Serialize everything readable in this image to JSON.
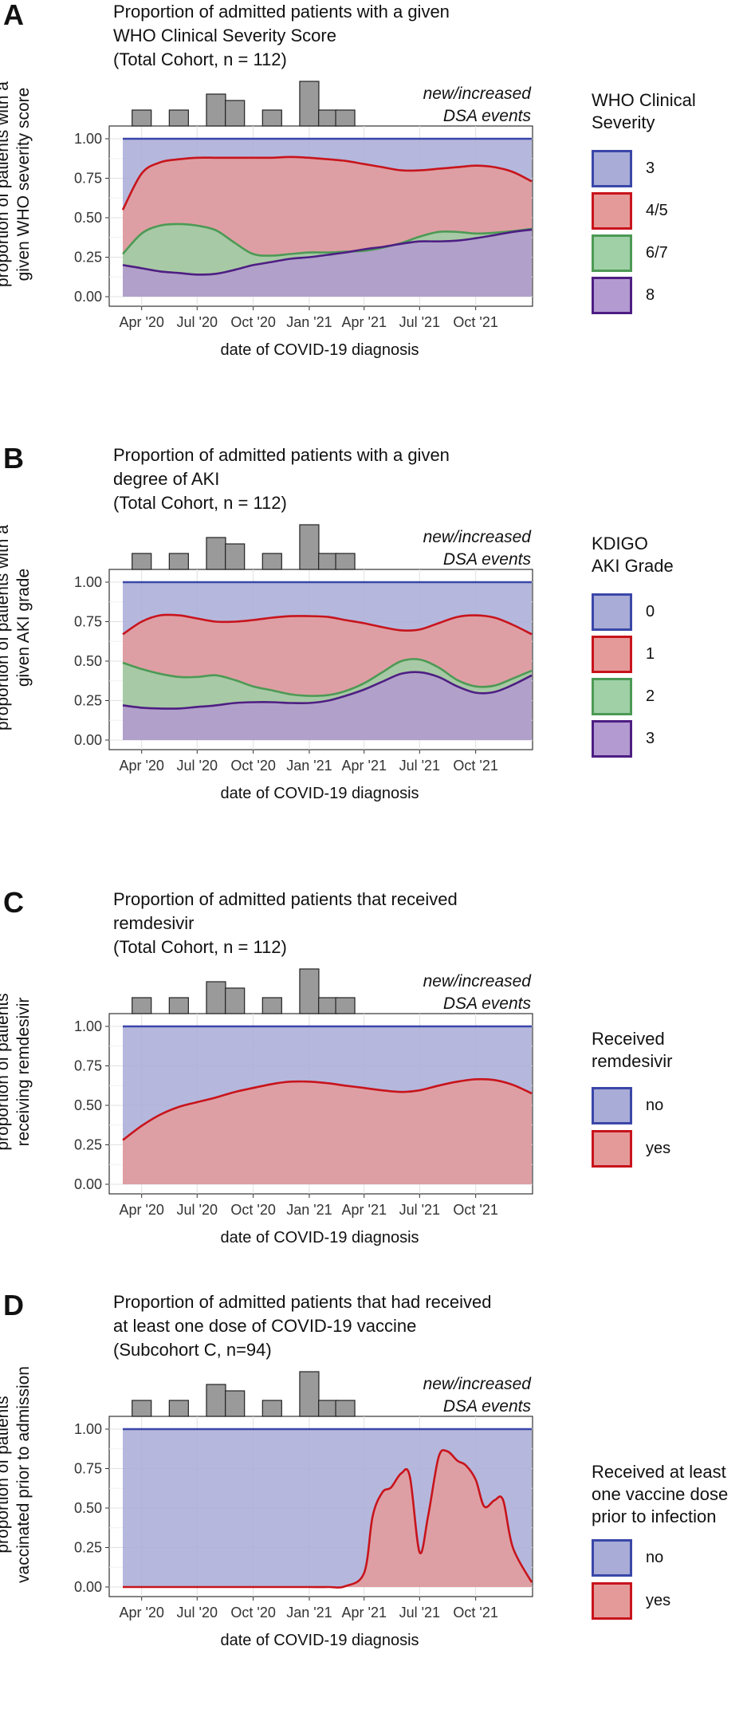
{
  "colors": {
    "blue_fill": "#a8acd6",
    "blue_line": "#3a47a8",
    "red_fill": "#e59a9a",
    "red_line": "#c8141c",
    "green_fill": "#9fd0a6",
    "green_line": "#4c9a55",
    "purple_fill": "#b39ad0",
    "purple_line": "#4e1e83",
    "hist_fill": "#9a9a9a"
  },
  "common": {
    "x_tick_labels": [
      "Apr '20",
      "Jul '20",
      "Oct '20",
      "Jan '21",
      "Apr '21",
      "Jul '21",
      "Oct '21"
    ],
    "y_tick_labels": [
      "1.00",
      "0.75",
      "0.50",
      "0.25",
      "0.00"
    ],
    "xlabel": "date of COVID-19 diagnosis",
    "events_label": "new/increased\nDSA events"
  },
  "panels": [
    {
      "letter": "A",
      "title": "Proportion of admitted patients with a given\nWHO Clinical Severity Score\n(Total Cohort, n = 112)",
      "ylabel": "proportion of patients with a\ngiven WHO severity score",
      "legend_title": "WHO Clinical\nSeverity",
      "legend": [
        {
          "label": "3",
          "fill": "#a8acd6",
          "line": "#3a47a8"
        },
        {
          "label": "4/5",
          "fill": "#e59a9a",
          "line": "#c8141c"
        },
        {
          "label": "6/7",
          "fill": "#9fd0a6",
          "line": "#4c9a55"
        },
        {
          "label": "8",
          "fill": "#b39ad0",
          "line": "#4e1e83"
        }
      ]
    },
    {
      "letter": "B",
      "title": "Proportion of admitted patients with a given\ndegree of AKI\n(Total Cohort, n = 112)",
      "ylabel": "proportion of patients with a\ngiven AKI grade",
      "legend_title": "KDIGO\nAKI Grade",
      "legend": [
        {
          "label": "0",
          "fill": "#a8acd6",
          "line": "#3a47a8"
        },
        {
          "label": "1",
          "fill": "#e59a9a",
          "line": "#c8141c"
        },
        {
          "label": "2",
          "fill": "#9fd0a6",
          "line": "#4c9a55"
        },
        {
          "label": "3",
          "fill": "#b39ad0",
          "line": "#4e1e83"
        }
      ]
    },
    {
      "letter": "C",
      "title": "Proportion of admitted patients that received\nremdesivir\n(Total Cohort, n = 112)",
      "ylabel": "proportion of patients\nreceiving remdesivir",
      "legend_title": "Received\nremdesivir",
      "legend": [
        {
          "label": "no",
          "fill": "#a8acd6",
          "line": "#3a47a8"
        },
        {
          "label": "yes",
          "fill": "#e59a9a",
          "line": "#c8141c"
        }
      ]
    },
    {
      "letter": "D",
      "title": "Proportion of admitted patients that had received\nat least one dose of COVID-19 vaccine\n(Subcohort C, n=94)",
      "ylabel": "proportion of patients\nvaccinated prior to admission",
      "legend_title": "Received at least\none vaccine dose\nprior to infection",
      "legend": [
        {
          "label": "no",
          "fill": "#a8acd6",
          "line": "#3a47a8"
        },
        {
          "label": "yes",
          "fill": "#e59a9a",
          "line": "#c8141c"
        }
      ]
    }
  ],
  "chart_data": [
    {
      "type": "area",
      "title": "Proportion of admitted patients with a given WHO Clinical Severity Score (Total Cohort, n = 112)",
      "xlabel": "date of COVID-19 diagnosis",
      "ylabel": "proportion of patients with a given WHO severity score",
      "ylim": [
        0,
        1
      ],
      "x": [
        "2020-03-01",
        "2020-04-01",
        "2020-05-01",
        "2020-06-01",
        "2020-07-01",
        "2020-08-01",
        "2020-09-01",
        "2020-10-01",
        "2020-11-01",
        "2020-12-01",
        "2021-01-01",
        "2021-02-01",
        "2021-03-01",
        "2021-04-01",
        "2021-05-01",
        "2021-06-01",
        "2021-07-01",
        "2021-08-01",
        "2021-09-01",
        "2021-10-01",
        "2021-11-01",
        "2021-12-01",
        "2022-01-01"
      ],
      "series": [
        {
          "name": "3",
          "values": [
            1,
            1,
            1,
            1,
            1,
            1,
            1,
            1,
            1,
            1,
            1,
            1,
            1,
            1,
            1,
            1,
            1,
            1,
            1,
            1,
            1,
            1,
            1
          ]
        },
        {
          "name": "4/5",
          "values": [
            0.55,
            0.78,
            0.85,
            0.87,
            0.88,
            0.88,
            0.88,
            0.88,
            0.88,
            0.885,
            0.88,
            0.87,
            0.86,
            0.84,
            0.82,
            0.8,
            0.8,
            0.81,
            0.82,
            0.83,
            0.82,
            0.79,
            0.73
          ]
        },
        {
          "name": "6/7",
          "values": [
            0.27,
            0.4,
            0.45,
            0.46,
            0.45,
            0.42,
            0.34,
            0.27,
            0.26,
            0.27,
            0.28,
            0.28,
            0.285,
            0.29,
            0.31,
            0.34,
            0.38,
            0.41,
            0.41,
            0.4,
            0.405,
            0.415,
            0.43
          ]
        },
        {
          "name": "8",
          "values": [
            0.2,
            0.18,
            0.16,
            0.15,
            0.14,
            0.145,
            0.17,
            0.2,
            0.22,
            0.24,
            0.25,
            0.265,
            0.28,
            0.3,
            0.315,
            0.335,
            0.35,
            0.35,
            0.355,
            0.37,
            0.39,
            0.41,
            0.425
          ]
        }
      ],
      "histogram": {
        "label": "new/increased DSA events",
        "bins": [
          "2020-04",
          "2020-06",
          "2020-08",
          "2020-09",
          "2020-11",
          "2021-01",
          "2021-02",
          "2021-03"
        ],
        "heights": [
          1,
          1,
          2,
          1.6,
          1,
          2.8,
          1,
          1
        ]
      }
    },
    {
      "type": "area",
      "title": "Proportion of admitted patients with a given degree of AKI (Total Cohort, n = 112)",
      "xlabel": "date of COVID-19 diagnosis",
      "ylabel": "proportion of patients with a given AKI grade",
      "ylim": [
        0,
        1
      ],
      "x": [
        "2020-03-01",
        "2020-04-01",
        "2020-05-01",
        "2020-06-01",
        "2020-07-01",
        "2020-08-01",
        "2020-09-01",
        "2020-10-01",
        "2020-11-01",
        "2020-12-01",
        "2021-01-01",
        "2021-02-01",
        "2021-03-01",
        "2021-04-01",
        "2021-05-01",
        "2021-06-01",
        "2021-07-01",
        "2021-08-01",
        "2021-09-01",
        "2021-10-01",
        "2021-11-01",
        "2021-12-01",
        "2022-01-01"
      ],
      "series": [
        {
          "name": "0",
          "values": [
            1,
            1,
            1,
            1,
            1,
            1,
            1,
            1,
            1,
            1,
            1,
            1,
            1,
            1,
            1,
            1,
            1,
            1,
            1,
            1,
            1,
            1,
            1
          ]
        },
        {
          "name": "1",
          "values": [
            0.67,
            0.75,
            0.79,
            0.79,
            0.77,
            0.75,
            0.75,
            0.76,
            0.775,
            0.785,
            0.785,
            0.78,
            0.76,
            0.74,
            0.715,
            0.695,
            0.7,
            0.74,
            0.78,
            0.79,
            0.775,
            0.73,
            0.67
          ]
        },
        {
          "name": "2",
          "values": [
            0.49,
            0.45,
            0.42,
            0.4,
            0.4,
            0.41,
            0.38,
            0.34,
            0.315,
            0.29,
            0.28,
            0.285,
            0.31,
            0.36,
            0.43,
            0.5,
            0.51,
            0.46,
            0.38,
            0.34,
            0.345,
            0.39,
            0.44
          ]
        },
        {
          "name": "3",
          "values": [
            0.22,
            0.205,
            0.2,
            0.2,
            0.21,
            0.22,
            0.235,
            0.24,
            0.24,
            0.235,
            0.235,
            0.25,
            0.28,
            0.32,
            0.37,
            0.42,
            0.43,
            0.4,
            0.34,
            0.3,
            0.305,
            0.35,
            0.41
          ]
        }
      ],
      "histogram": {
        "label": "new/increased DSA events",
        "bins": [
          "2020-04",
          "2020-06",
          "2020-08",
          "2020-09",
          "2020-11",
          "2021-01",
          "2021-02",
          "2021-03"
        ],
        "heights": [
          1,
          1,
          2,
          1.6,
          1,
          2.8,
          1,
          1
        ]
      }
    },
    {
      "type": "area",
      "title": "Proportion of admitted patients that received remdesivir (Total Cohort, n = 112)",
      "xlabel": "date of COVID-19 diagnosis",
      "ylabel": "proportion of patients receiving remdesivir",
      "ylim": [
        0,
        1
      ],
      "x": [
        "2020-03-01",
        "2020-04-01",
        "2020-05-01",
        "2020-06-01",
        "2020-07-01",
        "2020-08-01",
        "2020-09-01",
        "2020-10-01",
        "2020-11-01",
        "2020-12-01",
        "2021-01-01",
        "2021-02-01",
        "2021-03-01",
        "2021-04-01",
        "2021-05-01",
        "2021-06-01",
        "2021-07-01",
        "2021-08-01",
        "2021-09-01",
        "2021-10-01",
        "2021-11-01",
        "2021-12-01",
        "2022-01-01"
      ],
      "series": [
        {
          "name": "no",
          "values": [
            1,
            1,
            1,
            1,
            1,
            1,
            1,
            1,
            1,
            1,
            1,
            1,
            1,
            1,
            1,
            1,
            1,
            1,
            1,
            1,
            1,
            1,
            1
          ]
        },
        {
          "name": "yes",
          "values": [
            0.28,
            0.37,
            0.44,
            0.49,
            0.52,
            0.55,
            0.585,
            0.61,
            0.635,
            0.65,
            0.65,
            0.64,
            0.625,
            0.61,
            0.595,
            0.585,
            0.595,
            0.625,
            0.65,
            0.665,
            0.66,
            0.63,
            0.575
          ]
        }
      ],
      "histogram": {
        "label": "new/increased DSA events",
        "bins": [
          "2020-04",
          "2020-06",
          "2020-08",
          "2020-09",
          "2020-11",
          "2021-01",
          "2021-02",
          "2021-03"
        ],
        "heights": [
          1,
          1,
          2,
          1.6,
          1,
          2.8,
          1,
          1
        ]
      }
    },
    {
      "type": "area",
      "title": "Proportion of admitted patients that had received at least one dose of COVID-19 vaccine (Subcohort C, n=94)",
      "xlabel": "date of COVID-19 diagnosis",
      "ylabel": "proportion of patients vaccinated prior to admission",
      "ylim": [
        0,
        1
      ],
      "x": [
        "2020-03-01",
        "2020-04-01",
        "2020-05-01",
        "2020-06-01",
        "2020-07-01",
        "2020-08-01",
        "2020-09-01",
        "2020-10-01",
        "2020-11-01",
        "2020-12-01",
        "2021-01-01",
        "2021-02-01",
        "2021-03-01",
        "2021-04-01",
        "2021-04-15",
        "2021-05-01",
        "2021-05-15",
        "2021-06-01",
        "2021-06-15",
        "2021-07-01",
        "2021-07-15",
        "2021-08-01",
        "2021-08-15",
        "2021-09-01",
        "2021-09-15",
        "2021-10-01",
        "2021-10-15",
        "2021-11-01",
        "2021-11-15",
        "2021-12-01",
        "2022-01-01"
      ],
      "series": [
        {
          "name": "no",
          "values": [
            1,
            1,
            1,
            1,
            1,
            1,
            1,
            1,
            1,
            1,
            1,
            1,
            1,
            1,
            1,
            1,
            1,
            1,
            1,
            1,
            1,
            1,
            1,
            1,
            1,
            1,
            1,
            1,
            1,
            1,
            1
          ]
        },
        {
          "name": "yes",
          "values": [
            0,
            0,
            0,
            0,
            0,
            0,
            0,
            0,
            0,
            0,
            0,
            0,
            0.005,
            0.09,
            0.45,
            0.6,
            0.63,
            0.72,
            0.7,
            0.22,
            0.45,
            0.82,
            0.86,
            0.8,
            0.77,
            0.68,
            0.51,
            0.55,
            0.55,
            0.25,
            0.03
          ]
        }
      ],
      "histogram": {
        "label": "new/increased DSA events",
        "bins": [
          "2020-04",
          "2020-06",
          "2020-08",
          "2020-09",
          "2020-11",
          "2021-01",
          "2021-02",
          "2021-03"
        ],
        "heights": [
          1,
          1,
          2,
          1.6,
          1,
          2.8,
          1,
          1
        ]
      }
    }
  ]
}
